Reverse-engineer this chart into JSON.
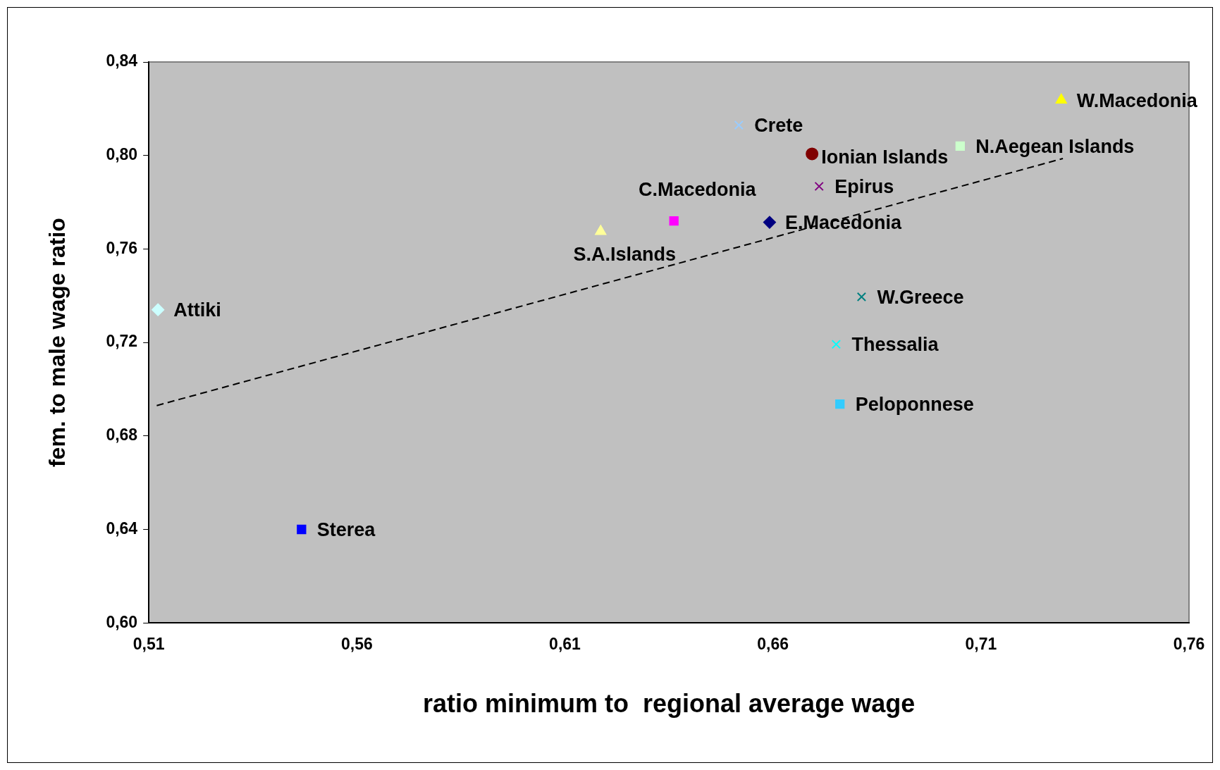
{
  "chart_data": {
    "type": "scatter",
    "xlabel": "ratio minimum to  regional average wage",
    "ylabel": "fem. to male wage ratio",
    "xlim": [
      0.51,
      0.76
    ],
    "xticks": [
      {
        "value": 0.51,
        "label": "0,51"
      },
      {
        "value": 0.56,
        "label": "0,56"
      },
      {
        "value": 0.61,
        "label": "0,61"
      },
      {
        "value": 0.66,
        "label": "0,66"
      },
      {
        "value": 0.71,
        "label": "0,71"
      },
      {
        "value": 0.76,
        "label": "0,76"
      }
    ],
    "ylim": [
      0.6,
      0.84
    ],
    "yticks": [
      {
        "value": 0.6,
        "label": "0,60"
      },
      {
        "value": 0.64,
        "label": "0,64"
      },
      {
        "value": 0.68,
        "label": "0,68"
      },
      {
        "value": 0.72,
        "label": "0,72"
      },
      {
        "value": 0.76,
        "label": "0,76"
      },
      {
        "value": 0.8,
        "label": "0,80"
      },
      {
        "value": 0.84,
        "label": "0,84"
      }
    ],
    "grid": false,
    "legend": false,
    "series": [
      {
        "name": "Attiki",
        "color": "#ccffff",
        "marker": "diamond",
        "x": [
          0.5122
        ],
        "values": [
          0.734
        ]
      },
      {
        "name": "Sterea",
        "color": "#0000ff",
        "marker": "square",
        "x": [
          0.5467
        ],
        "values": [
          0.64
        ]
      },
      {
        "name": "S.A.Islands",
        "color": "#ffff99",
        "marker": "triangle",
        "x": [
          0.6186
        ],
        "values": [
          0.7675
        ]
      },
      {
        "name": "C.Macedonia",
        "color": "#ff00ff",
        "marker": "square",
        "x": [
          0.6362
        ],
        "values": [
          0.772
        ]
      },
      {
        "name": "E.Macedonia",
        "color": "#000080",
        "marker": "diamond",
        "x": [
          0.6592
        ],
        "values": [
          0.7714
        ]
      },
      {
        "name": "Crete",
        "color": "#99ccff",
        "marker": "cross",
        "x": [
          0.6518
        ],
        "values": [
          0.813
        ]
      },
      {
        "name": "Ionian Islands",
        "color": "#800000",
        "marker": "circle",
        "x": [
          0.6694
        ],
        "values": [
          0.8007
        ]
      },
      {
        "name": "Epirus",
        "color": "#800080",
        "marker": "cross",
        "x": [
          0.6711
        ],
        "values": [
          0.7868
        ]
      },
      {
        "name": "W.Greece",
        "color": "#008080",
        "marker": "cross",
        "x": [
          0.6813
        ],
        "values": [
          0.7395
        ]
      },
      {
        "name": "Thessalia",
        "color": "#00ffff",
        "marker": "cross",
        "x": [
          0.6752
        ],
        "values": [
          0.7192
        ]
      },
      {
        "name": "Peloponnese",
        "color": "#33ccff",
        "marker": "square",
        "x": [
          0.6761
        ],
        "values": [
          0.6936
        ]
      },
      {
        "name": "N.Aegean Islands",
        "color": "#ccffcc",
        "marker": "square",
        "x": [
          0.705
        ],
        "values": [
          0.804
        ]
      },
      {
        "name": "W.Macedonia",
        "color": "#ffff00",
        "marker": "triangle",
        "x": [
          0.7293
        ],
        "values": [
          0.8237
        ]
      },
      {
        "type": "line",
        "color": "#000000",
        "line_style": "dashed",
        "marker": "none",
        "x": [
          0.5119,
          0.7297
        ],
        "values": [
          0.693,
          0.7987
        ]
      }
    ]
  }
}
